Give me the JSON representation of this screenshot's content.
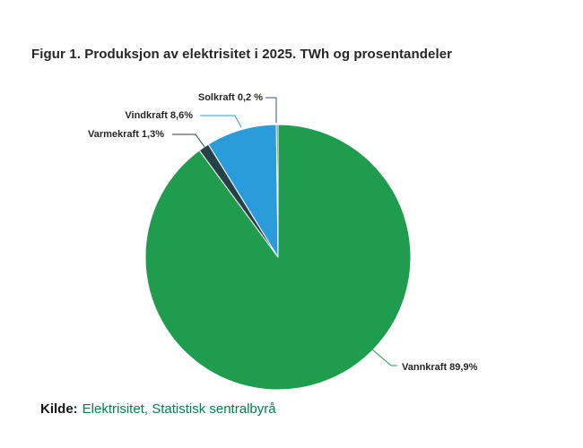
{
  "page": {
    "source_prefix": "Kilde:",
    "source_text": "Elektrisitet, Statistisk sentralbyrå"
  },
  "colors": {
    "background": "#ffffff",
    "title_text": "#262626",
    "label_text": "#262626",
    "source_link_green": "#00824d",
    "slice_border": "#ffffff"
  },
  "chart_data": {
    "type": "pie",
    "title": "Figur 1. Produksjon av elektrisitet i 2025. TWh og prosentandeler",
    "unit": "percent",
    "start_angle_deg": 0,
    "direction": "clockwise",
    "legend": "none",
    "slices": [
      {
        "name": "Vannkraft",
        "percent": 89.9,
        "label": "Vannkraft 89,9%",
        "color": "#1f9c4d"
      },
      {
        "name": "Varmekraft",
        "percent": 1.3,
        "label": "Varmekraft 1,3%",
        "color": "#274247"
      },
      {
        "name": "Vindkraft",
        "percent": 8.6,
        "label": "Vindkraft 8,6%",
        "color": "#2b9cdb"
      },
      {
        "name": "Solkraft",
        "percent": 0.2,
        "label": "Solkraft 0,2 %",
        "color": "#3f4e8f"
      }
    ]
  }
}
